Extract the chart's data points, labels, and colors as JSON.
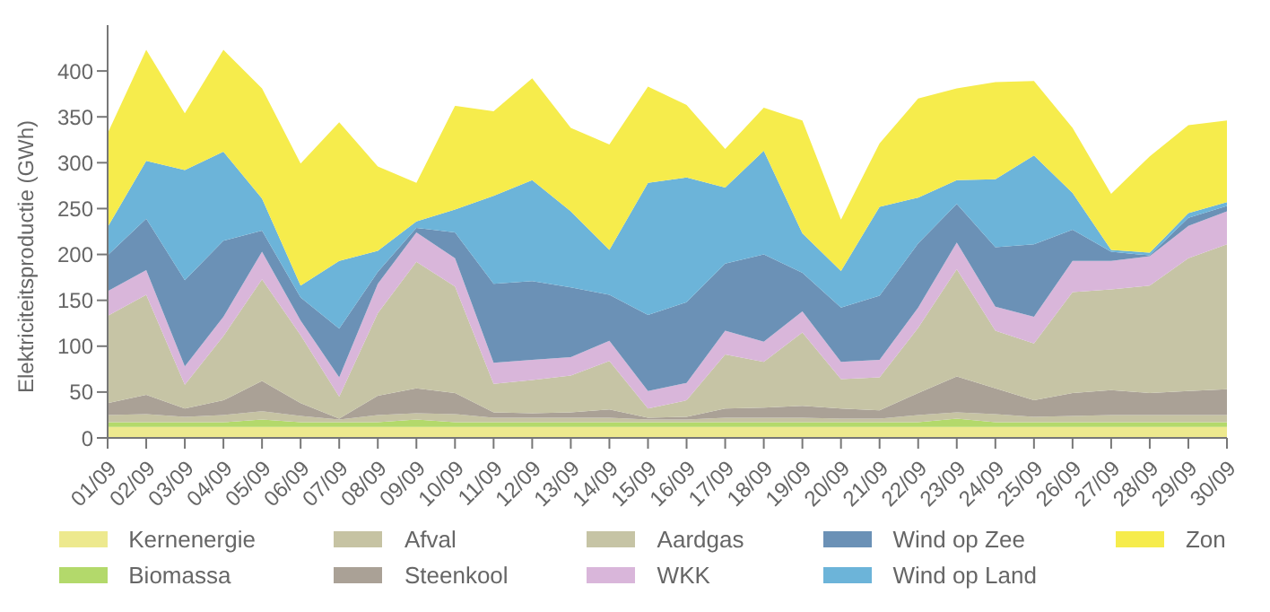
{
  "chart_data": {
    "type": "area",
    "stacked": true,
    "ylabel": "Elektriciteitsproductie (GWh)",
    "categories": [
      "01/09",
      "02/09",
      "03/09",
      "04/09",
      "05/09",
      "06/09",
      "07/09",
      "08/09",
      "09/09",
      "10/09",
      "11/09",
      "12/09",
      "13/09",
      "14/09",
      "15/09",
      "16/09",
      "17/09",
      "18/09",
      "19/09",
      "20/09",
      "21/09",
      "22/09",
      "23/09",
      "24/09",
      "25/09",
      "26/09",
      "27/09",
      "28/09",
      "29/09",
      "30/09"
    ],
    "ylim": [
      0,
      450
    ],
    "yticks": [
      0,
      50,
      100,
      150,
      200,
      250,
      300,
      350,
      400
    ],
    "grid": false,
    "legend": "bottom",
    "series": [
      {
        "name": "Kernenergie",
        "color": "#ede98e",
        "values": [
          12,
          12,
          12,
          12,
          12,
          12,
          12,
          12,
          12,
          12,
          12,
          12,
          12,
          12,
          12,
          12,
          12,
          12,
          12,
          12,
          12,
          12,
          12,
          12,
          12,
          12,
          12,
          12,
          12,
          12
        ]
      },
      {
        "name": "Biomassa",
        "color": "#b3d96b",
        "values": [
          5,
          5,
          5,
          5,
          8,
          5,
          5,
          5,
          8,
          5,
          5,
          5,
          5,
          5,
          5,
          5,
          5,
          5,
          5,
          5,
          5,
          5,
          9,
          5,
          5,
          5,
          5,
          5,
          5,
          5
        ]
      },
      {
        "name": "Afval",
        "color": "#c6c3a3",
        "values": [
          8,
          9,
          6,
          8,
          9,
          7,
          3,
          8,
          7,
          9,
          5,
          5,
          5,
          5,
          3,
          3,
          5,
          5,
          5,
          4,
          4,
          8,
          7,
          9,
          6,
          7,
          8,
          8,
          8,
          8
        ]
      },
      {
        "name": "Steenkool",
        "color": "#aaa196",
        "values": [
          13,
          21,
          9,
          16,
          33,
          14,
          1,
          21,
          27,
          23,
          6,
          5,
          6,
          9,
          2,
          3,
          10,
          11,
          13,
          11,
          9,
          24,
          39,
          28,
          18,
          25,
          27,
          24,
          26,
          28
        ]
      },
      {
        "name": "Aardgas",
        "color": "#c6c4a5",
        "values": [
          95,
          109,
          26,
          70,
          111,
          74,
          24,
          90,
          138,
          116,
          31,
          36,
          40,
          53,
          10,
          18,
          59,
          50,
          80,
          32,
          36,
          71,
          117,
          63,
          62,
          110,
          110,
          117,
          145,
          158
        ]
      },
      {
        "name": "WKK",
        "color": "#d9b6da",
        "values": [
          27,
          27,
          20,
          21,
          30,
          16,
          21,
          32,
          32,
          31,
          23,
          22,
          20,
          22,
          19,
          19,
          26,
          22,
          23,
          19,
          19,
          22,
          29,
          26,
          29,
          34,
          31,
          32,
          35,
          36
        ]
      },
      {
        "name": "Wind op Zee",
        "color": "#6b91b6",
        "values": [
          39,
          56,
          94,
          83,
          23,
          25,
          53,
          13,
          5,
          28,
          86,
          86,
          76,
          50,
          83,
          88,
          73,
          95,
          42,
          59,
          70,
          70,
          42,
          65,
          79,
          34,
          10,
          1,
          9,
          6
        ]
      },
      {
        "name": "Wind op Land",
        "color": "#6cb4d9",
        "values": [
          31,
          63,
          120,
          97,
          35,
          13,
          74,
          23,
          7,
          25,
          96,
          110,
          83,
          49,
          144,
          136,
          83,
          113,
          43,
          40,
          97,
          50,
          26,
          74,
          97,
          40,
          2,
          3,
          5,
          4
        ]
      },
      {
        "name": "Zon",
        "color": "#f6ec4c",
        "values": [
          102,
          121,
          62,
          111,
          120,
          133,
          151,
          92,
          42,
          113,
          92,
          111,
          91,
          115,
          105,
          79,
          42,
          47,
          123,
          56,
          69,
          108,
          100,
          106,
          81,
          71,
          61,
          105,
          96,
          89
        ]
      }
    ]
  }
}
